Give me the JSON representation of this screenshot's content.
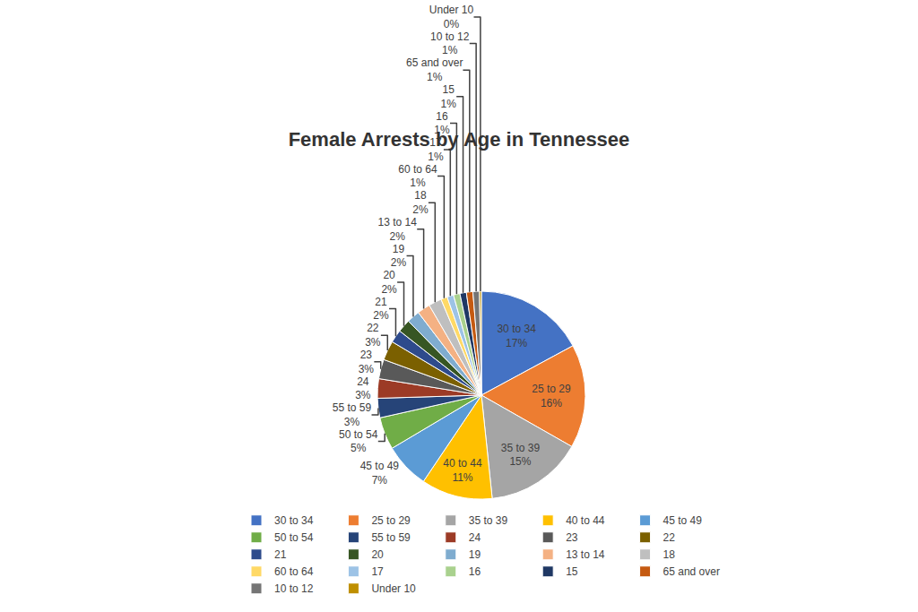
{
  "chart_data": {
    "type": "pie",
    "title": "Female Arrests by Age in Tennessee",
    "categories": [
      "30 to 34",
      "25 to 29",
      "35 to 39",
      "40 to 44",
      "45 to 49",
      "50 to 54",
      "55 to 59",
      "24",
      "23",
      "22",
      "21",
      "20",
      "19",
      "13 to 14",
      "18",
      "60 to 64",
      "17",
      "16",
      "15",
      "65 and over",
      "10 to 12",
      "Under 10"
    ],
    "values": [
      17,
      16,
      15,
      11,
      7,
      5,
      3,
      3,
      3,
      3,
      2,
      2,
      2,
      2,
      2,
      1,
      1,
      1,
      1,
      1,
      1,
      0.3
    ],
    "value_labels": [
      "17%",
      "16%",
      "15%",
      "11%",
      "7%",
      "5%",
      "3%",
      "3%",
      "3%",
      "3%",
      "2%",
      "2%",
      "2%",
      "2%",
      "2%",
      "1%",
      "1%",
      "1%",
      "1%",
      "1%",
      "1%",
      "0%"
    ],
    "data_labels": true,
    "colors": [
      "#4472C4",
      "#ED7D31",
      "#A5A5A5",
      "#FFC000",
      "#5B9BD5",
      "#70AD47",
      "#264478",
      "#9C3B26",
      "#595959",
      "#7B6000",
      "#2E4B8C",
      "#375623",
      "#7FACCF",
      "#F4B183",
      "#BFBFBF",
      "#FFD966",
      "#9DC3E6",
      "#A9D18E",
      "#1F3864",
      "#C55A11",
      "#757575",
      "#BF8F00"
    ],
    "legend": "bottom"
  }
}
